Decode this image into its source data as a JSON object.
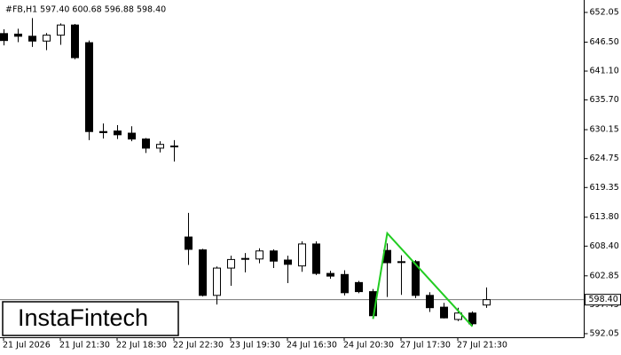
{
  "chart_data": {
    "type": "candlestick",
    "title": "#FB,H1  597.40 600.68 596.88 598.40",
    "watermark": "InstaFintech",
    "categories": [
      "21 Jul 2026",
      null,
      null,
      null,
      "21 Jul 21:30",
      null,
      null,
      null,
      "22 Jul 18:30",
      null,
      null,
      null,
      "22 Jul 22:30",
      null,
      null,
      null,
      "23 Jul 19:30",
      null,
      null,
      null,
      "24 Jul 16:30",
      null,
      null,
      null,
      "24 Jul 20:30",
      null,
      null,
      null,
      "27 Jul 17:30",
      null,
      null,
      null,
      "27 Jul 21:30",
      null,
      null
    ],
    "open": [
      648.1,
      648.0,
      647.6,
      646.7,
      647.8,
      649.7,
      646.4,
      629.8,
      629.9,
      629.5,
      628.4,
      626.7,
      627.1,
      610.1,
      607.7,
      599.2,
      604.3,
      606.0,
      606.0,
      607.5,
      605.8,
      604.7,
      608.8,
      603.3,
      603.1,
      601.6,
      599.9,
      607.6,
      605.5,
      605.5,
      599.2,
      597.0,
      594.7,
      595.9,
      597.4
    ],
    "high": [
      648.9,
      649.0,
      651.0,
      648.2,
      650.0,
      649.9,
      646.8,
      631.3,
      631.0,
      630.8,
      628.6,
      628.0,
      628.2,
      614.6,
      607.9,
      604.6,
      606.6,
      607.1,
      608.0,
      607.8,
      606.6,
      609.3,
      609.3,
      603.8,
      603.9,
      601.9,
      600.4,
      608.9,
      606.7,
      605.8,
      599.8,
      597.8,
      596.9,
      596.2,
      600.68
    ],
    "low": [
      645.9,
      646.5,
      645.6,
      645.0,
      646.0,
      643.3,
      628.2,
      628.5,
      628.4,
      628.0,
      625.8,
      625.9,
      624.2,
      604.9,
      599.0,
      597.5,
      601.0,
      603.5,
      605.2,
      604.3,
      601.5,
      603.6,
      603.0,
      602.3,
      599.2,
      599.6,
      594.9,
      598.9,
      599.3,
      598.7,
      596.1,
      594.9,
      594.4,
      593.5,
      596.88
    ],
    "close": [
      646.8,
      647.6,
      646.7,
      647.8,
      649.7,
      643.6,
      629.8,
      629.6,
      629.2,
      628.4,
      626.7,
      627.4,
      627.0,
      607.8,
      599.2,
      604.3,
      605.9,
      606.1,
      607.5,
      605.6,
      605.0,
      608.8,
      603.3,
      602.8,
      599.7,
      599.9,
      595.4,
      605.3,
      605.4,
      599.2,
      596.9,
      595.0,
      595.9,
      593.9,
      598.4
    ],
    "up_color": "#ffffff",
    "down_color": "#000000",
    "ylim": [
      591.38,
      654.37
    ],
    "yticks": [
      652.05,
      {
        "value": 646.5,
        "label": "646.50"
      },
      {
        "value": 641.1,
        "label": "641.10"
      },
      {
        "value": 635.7,
        "label": "635.70"
      },
      630.15,
      624.75,
      619.35,
      {
        "value": 613.8,
        "label": "613.80"
      },
      {
        "value": 608.4,
        "label": "608.40"
      },
      602.85,
      597.45,
      592.05
    ],
    "current_price": {
      "value": 598.4,
      "label": "598.40"
    },
    "pattern": {
      "color": "#22cc22",
      "x": [
        26,
        27,
        33
      ],
      "values": [
        594.8,
        610.8,
        593.4
      ]
    }
  }
}
